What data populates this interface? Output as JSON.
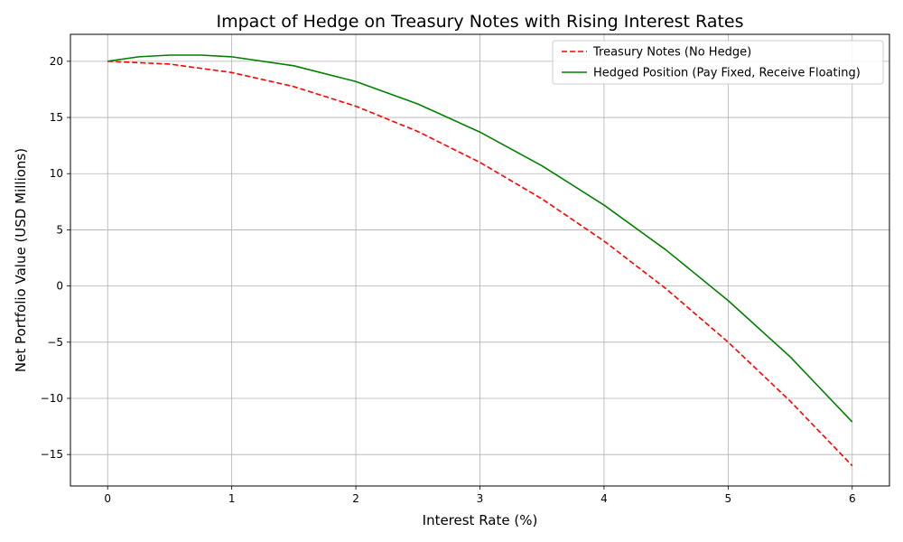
{
  "chart_data": {
    "type": "line",
    "title": "Impact of Hedge on Treasury Notes with Rising Interest Rates",
    "xlabel": "Interest Rate (%)",
    "ylabel": "Net Portfolio Value (USD Millions)",
    "xlim": [
      -0.3,
      6.3
    ],
    "ylim": [
      -17.8,
      22.4
    ],
    "xticks": [
      0,
      1,
      2,
      3,
      4,
      5,
      6
    ],
    "yticks": [
      -15,
      -10,
      -5,
      0,
      5,
      10,
      15,
      20
    ],
    "grid": true,
    "legend_position": "top-right",
    "series": [
      {
        "name": "Treasury Notes (No Hedge)",
        "color": "#ff0000",
        "style": "dashed",
        "x": [
          0,
          0.5,
          1,
          1.5,
          2,
          2.5,
          3,
          3.5,
          4,
          4.5,
          5,
          5.5,
          6
        ],
        "y": [
          20,
          19.75,
          19,
          17.75,
          16,
          13.75,
          11,
          7.75,
          4,
          -0.25,
          -5,
          -10.25,
          -16
        ]
      },
      {
        "name": "Hedged Position (Pay Fixed, Receive Floating)",
        "color": "#008000",
        "style": "solid",
        "x": [
          0,
          0.25,
          0.5,
          0.75,
          1,
          1.5,
          2,
          2.5,
          3,
          3.5,
          4,
          4.5,
          5,
          5.5,
          6
        ],
        "y": [
          20,
          20.4,
          20.55,
          20.55,
          20.4,
          19.6,
          18.2,
          16.2,
          13.7,
          10.7,
          7.2,
          3.2,
          -1.3,
          -6.3,
          -12.1
        ]
      }
    ]
  }
}
